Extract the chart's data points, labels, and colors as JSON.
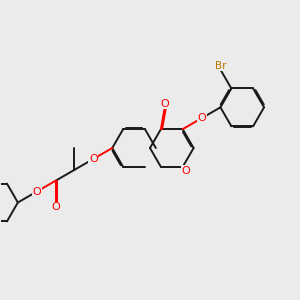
{
  "background_color": "#ebebeb",
  "bond_color": "#1a1a1a",
  "oxygen_color": "#ff0000",
  "bromine_color": "#bb7700",
  "lw": 1.4,
  "fs": 7.5,
  "dbo": 0.012
}
